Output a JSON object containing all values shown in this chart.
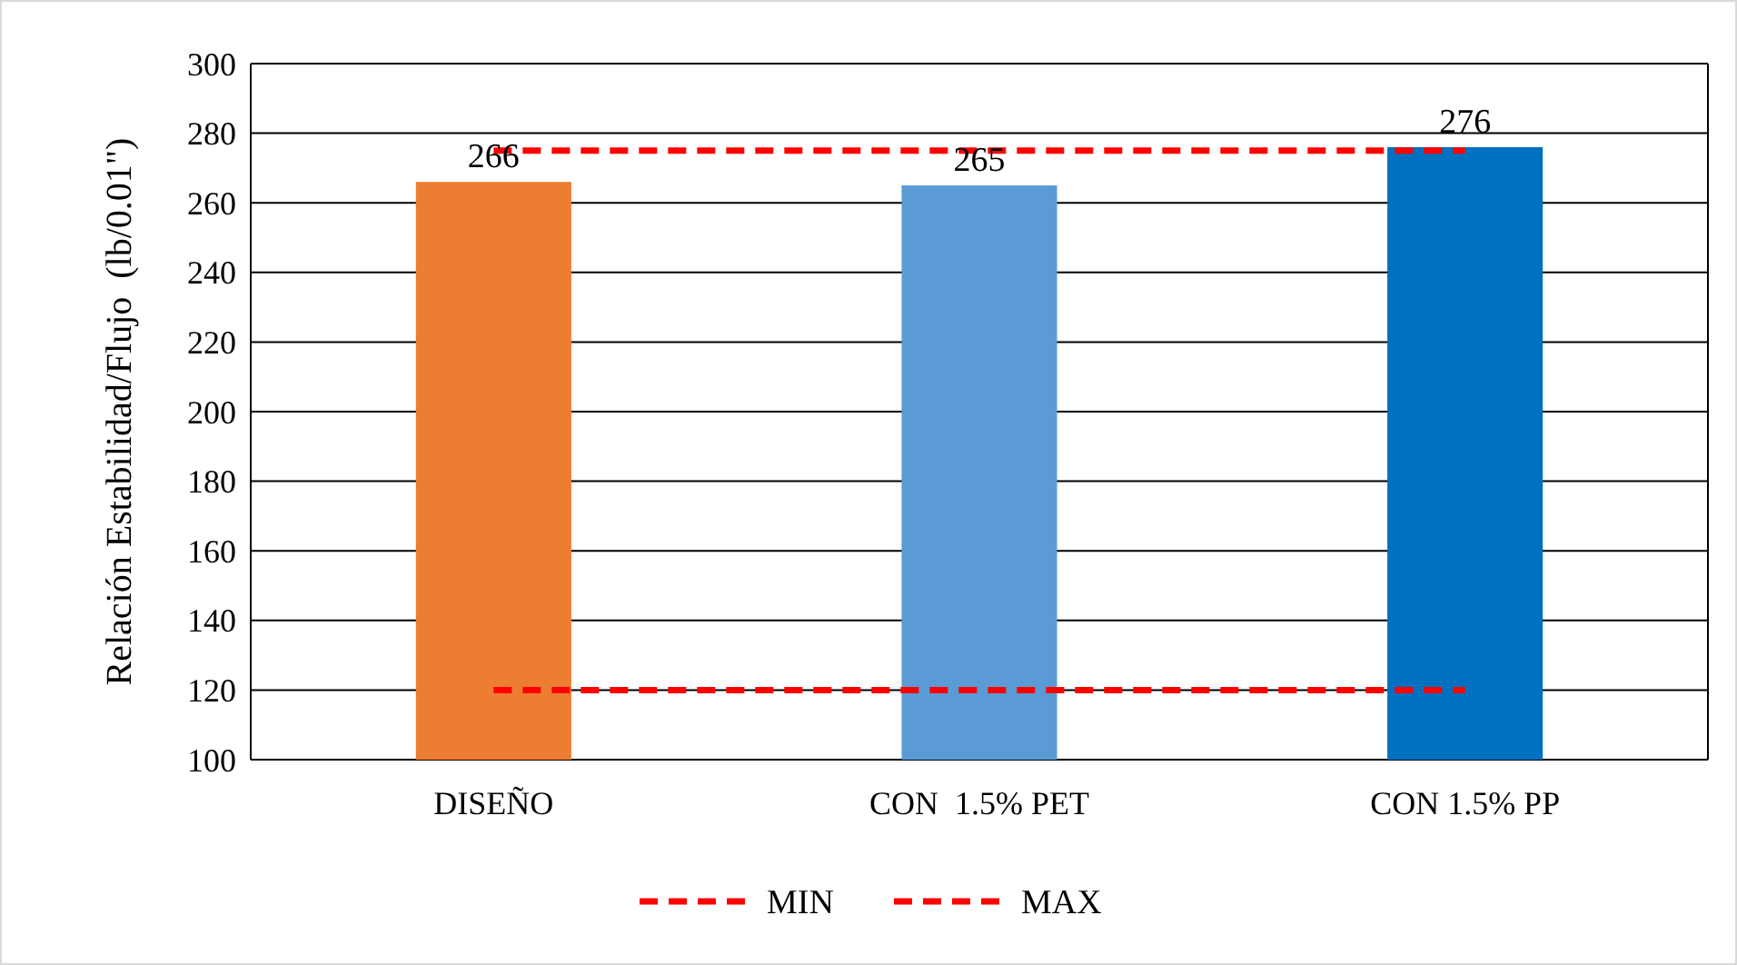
{
  "chart_data": {
    "type": "bar",
    "ylabel": "Relación Estabilidad/Flujo  (lb/0.01\")",
    "categories": [
      "DISEÑO",
      "CON  1.5% PET",
      "CON 1.5% PP"
    ],
    "values": [
      266,
      265,
      276
    ],
    "colors": [
      "#ed7d31",
      "#5b9bd5",
      "#0070c0"
    ],
    "value_labels": [
      "266",
      "265",
      "276"
    ],
    "series": [
      {
        "type": "line",
        "name": "MIN",
        "color": "#ff0000",
        "values": [
          120,
          120,
          120
        ]
      },
      {
        "type": "line",
        "name": "MAX",
        "color": "#ff0000",
        "values": [
          275,
          275,
          275
        ]
      }
    ],
    "line_style": "dashed",
    "ylim": [
      100,
      300
    ],
    "yticks": [
      100,
      120,
      140,
      160,
      180,
      200,
      220,
      240,
      260,
      280,
      300
    ],
    "grid": "y",
    "legend": "bottom"
  }
}
